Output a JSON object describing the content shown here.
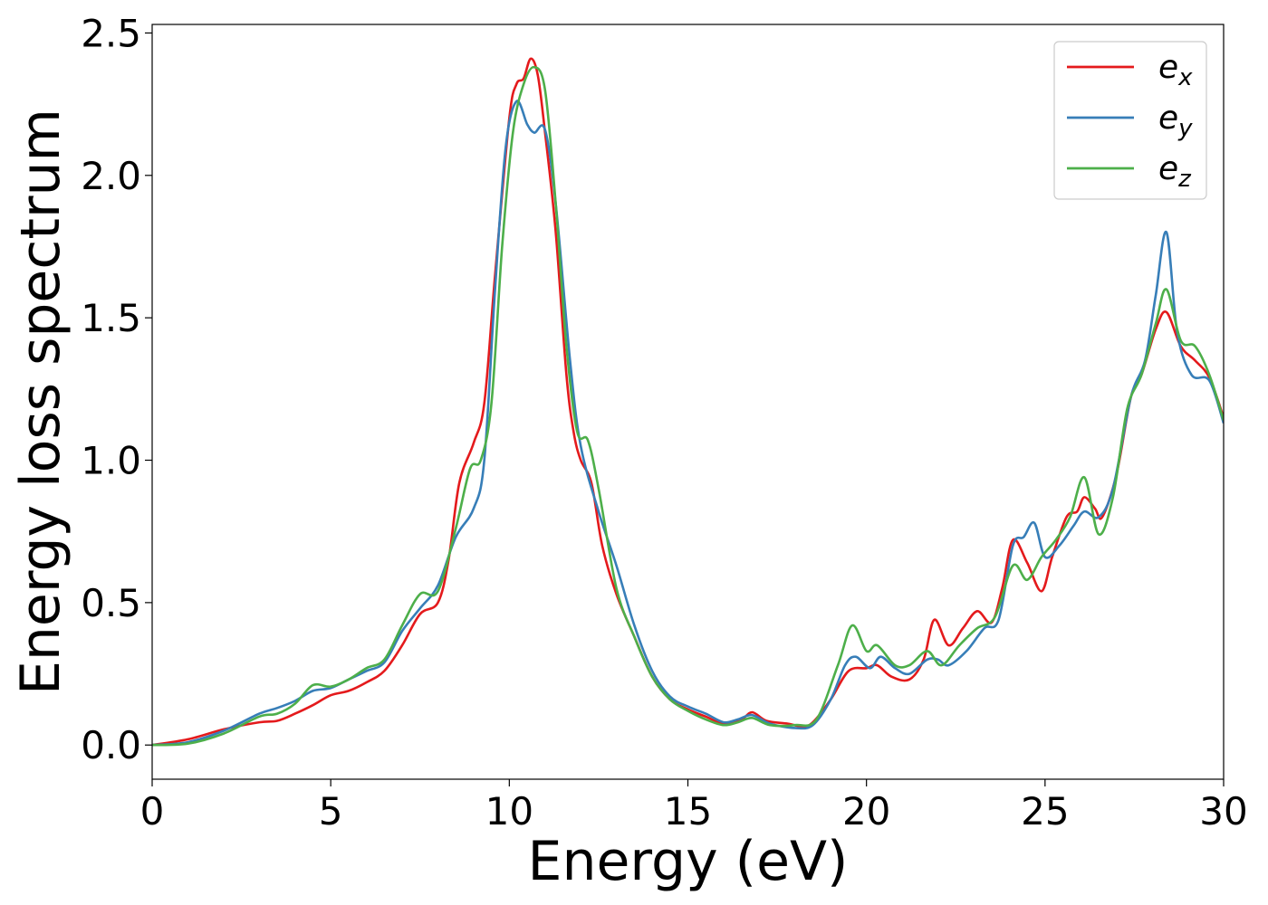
{
  "chart_data": {
    "type": "line",
    "title": "",
    "xlabel": "Energy (eV)",
    "ylabel": "Energy loss spectrum",
    "xlim": [
      0,
      30
    ],
    "ylim": [
      -0.12,
      2.53
    ],
    "xticks": [
      0,
      5,
      10,
      15,
      20,
      25,
      30
    ],
    "xtick_labels": [
      "0",
      "5",
      "10",
      "15",
      "20",
      "25",
      "30"
    ],
    "yticks": [
      0.0,
      0.5,
      1.0,
      1.5,
      2.0,
      2.5
    ],
    "ytick_labels": [
      "0.0",
      "0.5",
      "1.0",
      "1.5",
      "2.0",
      "2.5"
    ],
    "grid": false,
    "legend_position": "top-right",
    "series": [
      {
        "name": "e",
        "subscript": "x",
        "color": "#e41a1c",
        "points": [
          [
            0,
            0
          ],
          [
            1,
            0.02
          ],
          [
            2,
            0.055
          ],
          [
            3,
            0.08
          ],
          [
            3.5,
            0.085
          ],
          [
            4,
            0.11
          ],
          [
            4.5,
            0.14
          ],
          [
            5,
            0.175
          ],
          [
            5.5,
            0.19
          ],
          [
            6,
            0.22
          ],
          [
            6.5,
            0.26
          ],
          [
            7,
            0.35
          ],
          [
            7.5,
            0.46
          ],
          [
            8,
            0.5
          ],
          [
            8.3,
            0.65
          ],
          [
            8.6,
            0.92
          ],
          [
            9,
            1.06
          ],
          [
            9.3,
            1.2
          ],
          [
            9.6,
            1.65
          ],
          [
            10,
            2.2
          ],
          [
            10.2,
            2.32
          ],
          [
            10.4,
            2.34
          ],
          [
            10.6,
            2.41
          ],
          [
            10.8,
            2.35
          ],
          [
            11,
            2.15
          ],
          [
            11.3,
            1.8
          ],
          [
            11.6,
            1.3
          ],
          [
            11.8,
            1.1
          ],
          [
            12,
            1.0
          ],
          [
            12.3,
            0.92
          ],
          [
            12.6,
            0.7
          ],
          [
            13,
            0.53
          ],
          [
            13.5,
            0.38
          ],
          [
            14,
            0.24
          ],
          [
            14.5,
            0.16
          ],
          [
            15,
            0.125
          ],
          [
            15.5,
            0.1
          ],
          [
            16,
            0.075
          ],
          [
            16.5,
            0.09
          ],
          [
            16.8,
            0.115
          ],
          [
            17.2,
            0.085
          ],
          [
            17.8,
            0.075
          ],
          [
            18.2,
            0.065
          ],
          [
            18.5,
            0.08
          ],
          [
            19,
            0.16
          ],
          [
            19.5,
            0.26
          ],
          [
            20,
            0.27
          ],
          [
            20.3,
            0.28
          ],
          [
            20.7,
            0.24
          ],
          [
            21.2,
            0.23
          ],
          [
            21.6,
            0.3
          ],
          [
            21.9,
            0.44
          ],
          [
            22.3,
            0.35
          ],
          [
            22.7,
            0.41
          ],
          [
            23.1,
            0.47
          ],
          [
            23.5,
            0.43
          ],
          [
            23.8,
            0.55
          ],
          [
            24.1,
            0.72
          ],
          [
            24.5,
            0.64
          ],
          [
            24.9,
            0.54
          ],
          [
            25.2,
            0.66
          ],
          [
            25.6,
            0.8
          ],
          [
            25.9,
            0.82
          ],
          [
            26.1,
            0.87
          ],
          [
            26.4,
            0.83
          ],
          [
            26.6,
            0.8
          ],
          [
            27,
            0.95
          ],
          [
            27.4,
            1.22
          ],
          [
            27.7,
            1.3
          ],
          [
            28.1,
            1.46
          ],
          [
            28.4,
            1.52
          ],
          [
            28.8,
            1.4
          ],
          [
            29.2,
            1.35
          ],
          [
            29.6,
            1.29
          ],
          [
            30,
            1.15
          ]
        ]
      },
      {
        "name": "e",
        "subscript": "y",
        "color": "#377eb8",
        "points": [
          [
            0,
            0
          ],
          [
            1,
            0.01
          ],
          [
            2,
            0.05
          ],
          [
            3,
            0.11
          ],
          [
            3.5,
            0.13
          ],
          [
            4,
            0.155
          ],
          [
            4.5,
            0.19
          ],
          [
            5,
            0.2
          ],
          [
            5.5,
            0.23
          ],
          [
            6,
            0.26
          ],
          [
            6.5,
            0.29
          ],
          [
            7,
            0.4
          ],
          [
            7.5,
            0.48
          ],
          [
            8,
            0.56
          ],
          [
            8.5,
            0.73
          ],
          [
            9,
            0.83
          ],
          [
            9.3,
            1.0
          ],
          [
            9.6,
            1.6
          ],
          [
            9.9,
            2.1
          ],
          [
            10.2,
            2.26
          ],
          [
            10.5,
            2.18
          ],
          [
            10.7,
            2.15
          ],
          [
            11,
            2.16
          ],
          [
            11.3,
            1.9
          ],
          [
            11.7,
            1.35
          ],
          [
            12,
            1.05
          ],
          [
            12.5,
            0.82
          ],
          [
            13,
            0.63
          ],
          [
            13.5,
            0.42
          ],
          [
            14,
            0.26
          ],
          [
            14.5,
            0.17
          ],
          [
            15,
            0.135
          ],
          [
            15.5,
            0.11
          ],
          [
            16,
            0.08
          ],
          [
            16.4,
            0.09
          ],
          [
            16.8,
            0.105
          ],
          [
            17.3,
            0.075
          ],
          [
            18,
            0.06
          ],
          [
            18.5,
            0.07
          ],
          [
            19,
            0.16
          ],
          [
            19.4,
            0.28
          ],
          [
            19.7,
            0.31
          ],
          [
            20.1,
            0.27
          ],
          [
            20.4,
            0.31
          ],
          [
            20.8,
            0.27
          ],
          [
            21.2,
            0.25
          ],
          [
            21.7,
            0.3
          ],
          [
            22,
            0.3
          ],
          [
            22.3,
            0.28
          ],
          [
            22.8,
            0.33
          ],
          [
            23.3,
            0.41
          ],
          [
            23.7,
            0.44
          ],
          [
            24.1,
            0.7
          ],
          [
            24.4,
            0.73
          ],
          [
            24.7,
            0.78
          ],
          [
            25,
            0.66
          ],
          [
            25.4,
            0.7
          ],
          [
            25.8,
            0.77
          ],
          [
            26.1,
            0.82
          ],
          [
            26.5,
            0.8
          ],
          [
            26.9,
            0.9
          ],
          [
            27.4,
            1.22
          ],
          [
            27.8,
            1.35
          ],
          [
            28.1,
            1.58
          ],
          [
            28.4,
            1.8
          ],
          [
            28.7,
            1.45
          ],
          [
            29.1,
            1.3
          ],
          [
            29.6,
            1.28
          ],
          [
            30,
            1.13
          ]
        ]
      },
      {
        "name": "e",
        "subscript": "z",
        "color": "#4daf4a",
        "points": [
          [
            0,
            0
          ],
          [
            1,
            0.005
          ],
          [
            2,
            0.04
          ],
          [
            3,
            0.1
          ],
          [
            3.5,
            0.11
          ],
          [
            4,
            0.145
          ],
          [
            4.5,
            0.21
          ],
          [
            5,
            0.205
          ],
          [
            5.5,
            0.23
          ],
          [
            6,
            0.27
          ],
          [
            6.5,
            0.3
          ],
          [
            7,
            0.42
          ],
          [
            7.5,
            0.53
          ],
          [
            8,
            0.54
          ],
          [
            8.5,
            0.76
          ],
          [
            8.9,
            0.97
          ],
          [
            9.2,
            1.0
          ],
          [
            9.5,
            1.2
          ],
          [
            9.8,
            1.75
          ],
          [
            10.1,
            2.15
          ],
          [
            10.4,
            2.32
          ],
          [
            10.7,
            2.38
          ],
          [
            11,
            2.3
          ],
          [
            11.3,
            1.9
          ],
          [
            11.6,
            1.4
          ],
          [
            11.9,
            1.1
          ],
          [
            12.2,
            1.07
          ],
          [
            12.5,
            0.9
          ],
          [
            13,
            0.55
          ],
          [
            13.5,
            0.38
          ],
          [
            14,
            0.24
          ],
          [
            14.5,
            0.16
          ],
          [
            15,
            0.12
          ],
          [
            15.5,
            0.09
          ],
          [
            16,
            0.07
          ],
          [
            16.4,
            0.08
          ],
          [
            16.8,
            0.095
          ],
          [
            17.3,
            0.07
          ],
          [
            18,
            0.07
          ],
          [
            18.6,
            0.09
          ],
          [
            19.2,
            0.28
          ],
          [
            19.6,
            0.42
          ],
          [
            20,
            0.33
          ],
          [
            20.3,
            0.35
          ],
          [
            20.8,
            0.28
          ],
          [
            21.2,
            0.28
          ],
          [
            21.7,
            0.33
          ],
          [
            22.1,
            0.28
          ],
          [
            22.6,
            0.35
          ],
          [
            23.1,
            0.41
          ],
          [
            23.6,
            0.45
          ],
          [
            24.1,
            0.63
          ],
          [
            24.5,
            0.58
          ],
          [
            24.9,
            0.66
          ],
          [
            25.3,
            0.72
          ],
          [
            25.7,
            0.8
          ],
          [
            26.1,
            0.94
          ],
          [
            26.5,
            0.74
          ],
          [
            26.9,
            0.87
          ],
          [
            27.3,
            1.18
          ],
          [
            27.7,
            1.3
          ],
          [
            28.1,
            1.48
          ],
          [
            28.4,
            1.6
          ],
          [
            28.8,
            1.42
          ],
          [
            29.2,
            1.4
          ],
          [
            29.6,
            1.3
          ],
          [
            30,
            1.14
          ]
        ]
      }
    ]
  }
}
